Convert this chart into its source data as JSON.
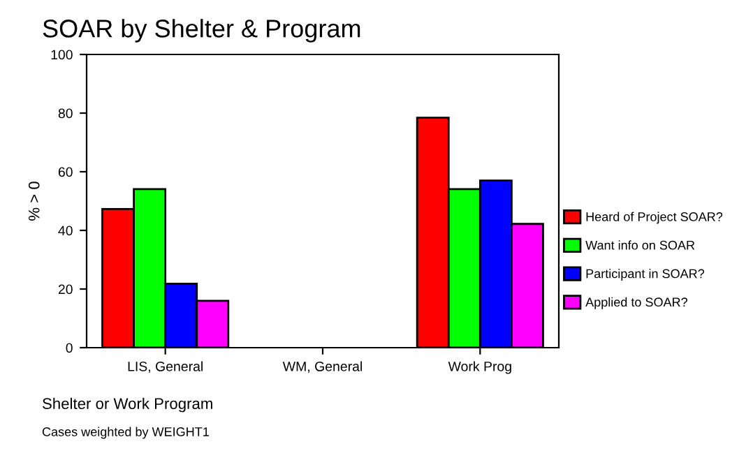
{
  "chart_data": {
    "type": "bar",
    "title": "SOAR by Shelter & Program",
    "xlabel": "Shelter or Work Program",
    "ylabel": "% > 0",
    "annotations": [
      "Cases weighted by WEIGHT1"
    ],
    "categories": [
      "LIS, General",
      "WM, General",
      "Work Prog"
    ],
    "series": [
      {
        "name": "Heard of Project SOAR?",
        "color": "#ff0000",
        "values": [
          47.3,
          null,
          78.4
        ]
      },
      {
        "name": "Want info on SOAR",
        "color": "#00ff00",
        "values": [
          54.1,
          null,
          54.1
        ]
      },
      {
        "name": "Participant in SOAR?",
        "color": "#0000ff",
        "values": [
          21.8,
          null,
          57.0
        ]
      },
      {
        "name": "Applied to SOAR?",
        "color": "#ff00ff",
        "values": [
          16.0,
          null,
          42.2
        ]
      }
    ],
    "ylim": [
      0,
      100
    ],
    "yticks": [
      0,
      20,
      40,
      60,
      80,
      100
    ],
    "grid": false,
    "legend": "right"
  }
}
